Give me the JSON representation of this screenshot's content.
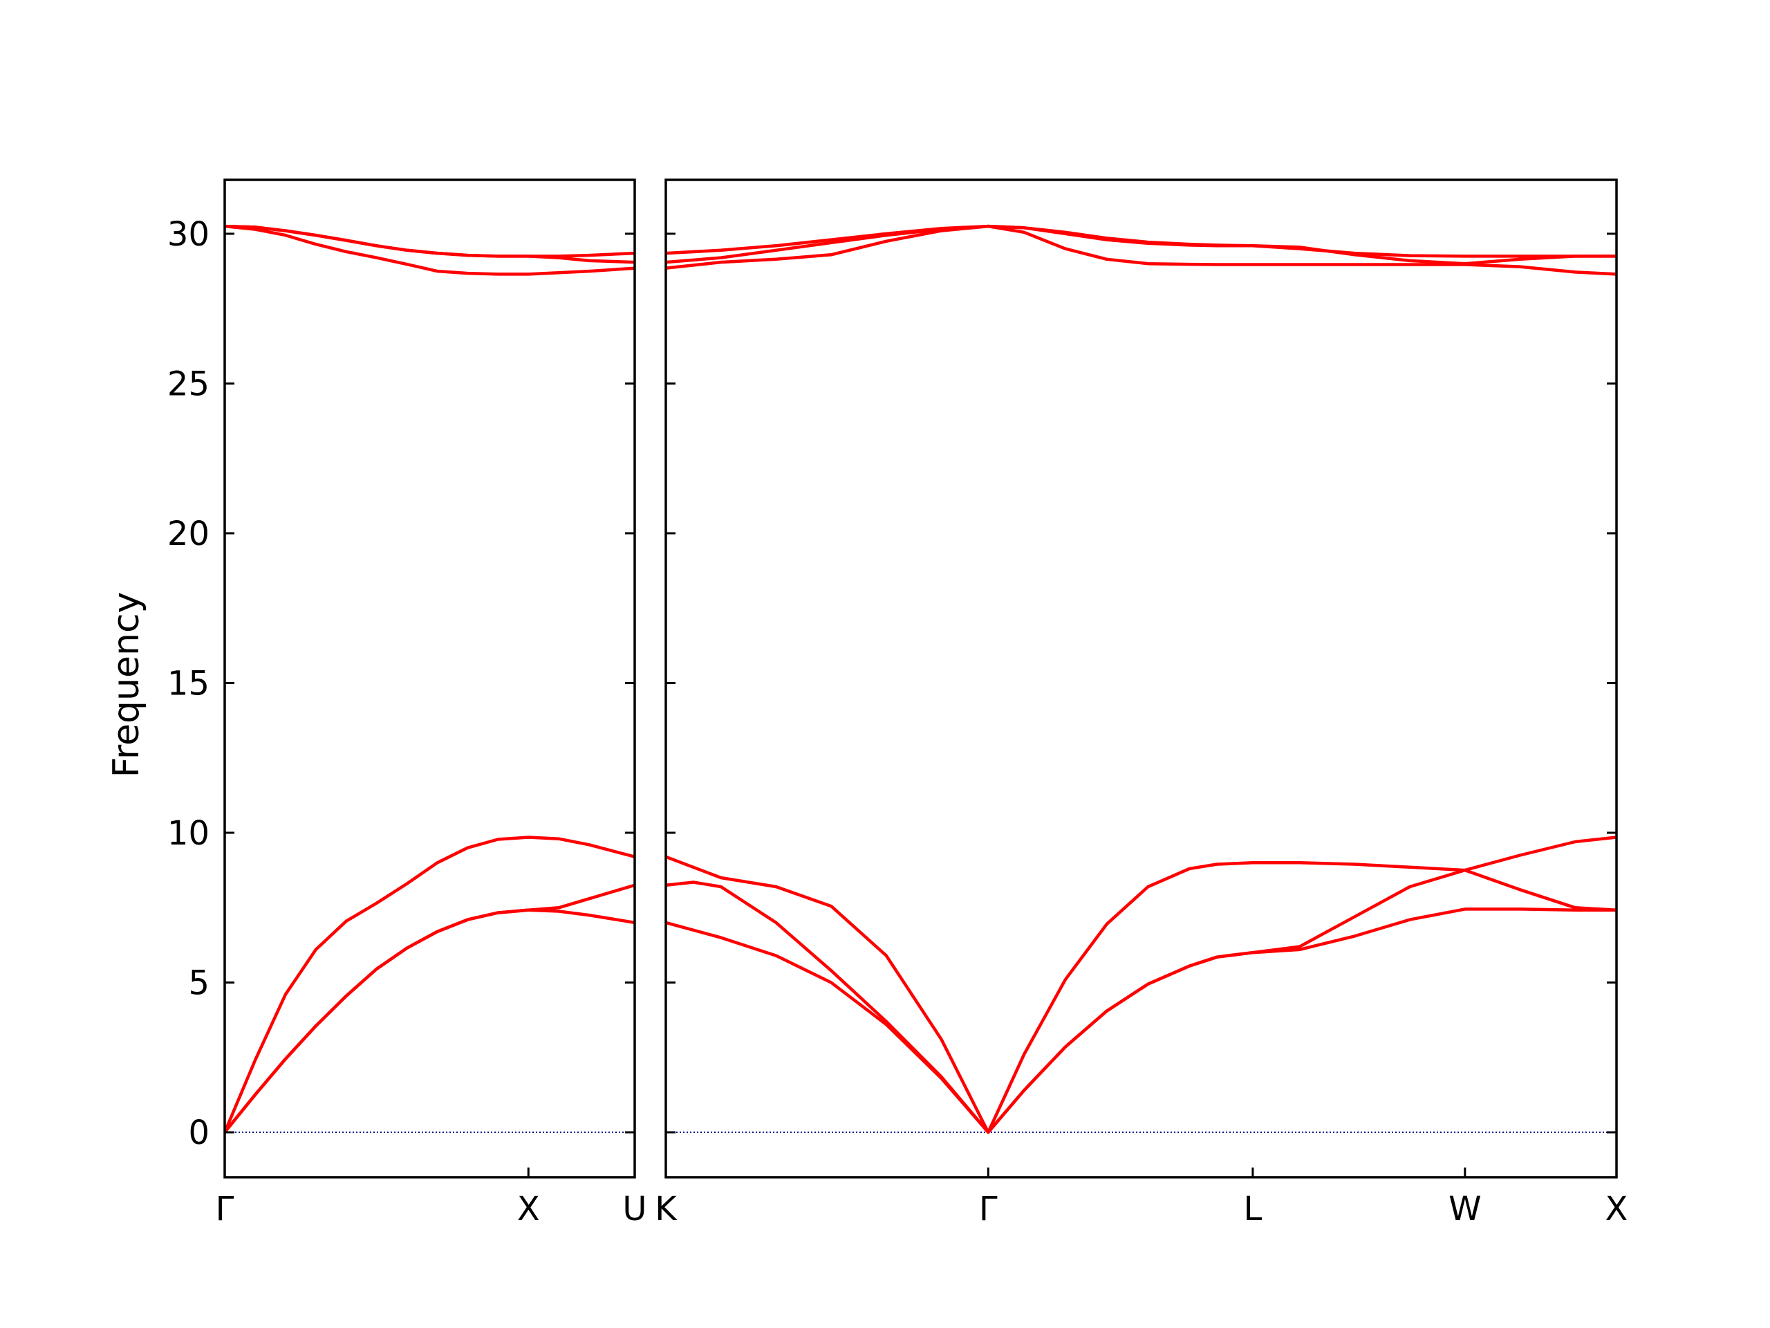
{
  "chart_data": {
    "type": "line",
    "ylabel": "Frequency",
    "ylim": [
      -1.5,
      31.8
    ],
    "y_ticks": [
      "0",
      "5",
      "10",
      "15",
      "20",
      "25",
      "30"
    ],
    "y_tick_values": [
      0,
      5,
      10,
      15,
      20,
      25,
      30
    ],
    "grid": false,
    "band_color": "#ff0000",
    "zero_line_color": "#00008b",
    "panels": [
      {
        "name": "left-panel",
        "xlim": [
          0,
          1.35
        ],
        "x_ticks": [
          {
            "label": "Γ",
            "value": 0
          },
          {
            "label": "X",
            "value": 1.0
          },
          {
            "label": "U",
            "value": 1.35
          }
        ],
        "series": [
          {
            "x": [
              0,
              0.1,
              0.2,
              0.3,
              0.4,
              0.5,
              0.6,
              0.7,
              0.8,
              0.9,
              1.0,
              1.1,
              1.2,
              1.35
            ],
            "values": [
              0,
              1.25,
              2.45,
              3.55,
              4.55,
              5.45,
              6.15,
              6.7,
              7.1,
              7.33,
              7.42,
              7.38,
              7.25,
              7.0
            ]
          },
          {
            "x": [
              0,
              0.1,
              0.2,
              0.3,
              0.4,
              0.5,
              0.6,
              0.7,
              0.8,
              0.9,
              1.0,
              1.1,
              1.2,
              1.35
            ],
            "values": [
              0,
              1.25,
              2.45,
              3.55,
              4.55,
              5.45,
              6.15,
              6.7,
              7.1,
              7.33,
              7.42,
              7.5,
              7.8,
              8.25
            ]
          },
          {
            "x": [
              0,
              0.1,
              0.2,
              0.3,
              0.4,
              0.5,
              0.6,
              0.7,
              0.8,
              0.9,
              1.0,
              1.1,
              1.2,
              1.35
            ],
            "values": [
              0,
              2.4,
              4.6,
              6.1,
              7.05,
              7.65,
              8.3,
              9.0,
              9.5,
              9.78,
              9.85,
              9.8,
              9.6,
              9.2
            ]
          },
          {
            "x": [
              0,
              0.1,
              0.2,
              0.3,
              0.4,
              0.5,
              0.6,
              0.7,
              0.8,
              0.9,
              1.0,
              1.1,
              1.2,
              1.35
            ],
            "values": [
              30.25,
              30.15,
              29.95,
              29.65,
              29.4,
              29.2,
              28.98,
              28.75,
              28.68,
              28.65,
              28.65,
              28.7,
              28.75,
              28.85
            ]
          },
          {
            "x": [
              0,
              0.1,
              0.2,
              0.3,
              0.4,
              0.5,
              0.6,
              0.7,
              0.8,
              0.9,
              1.0,
              1.1,
              1.2,
              1.35
            ],
            "values": [
              30.25,
              30.22,
              30.1,
              29.95,
              29.78,
              29.6,
              29.45,
              29.35,
              29.28,
              29.25,
              29.25,
              29.25,
              29.28,
              29.35
            ]
          },
          {
            "x": [
              0,
              0.1,
              0.2,
              0.3,
              0.4,
              0.5,
              0.6,
              0.7,
              0.8,
              0.9,
              1.0,
              1.1,
              1.2,
              1.35
            ],
            "values": [
              30.25,
              30.22,
              30.1,
              29.95,
              29.78,
              29.6,
              29.45,
              29.35,
              29.28,
              29.25,
              29.25,
              29.2,
              29.1,
              29.05
            ]
          }
        ]
      },
      {
        "name": "right-panel",
        "xlim": [
          0,
          3.45
        ],
        "x_ticks": [
          {
            "label": "K",
            "value": 0
          },
          {
            "label": "Γ",
            "value": 1.17
          },
          {
            "label": "L",
            "value": 2.13
          },
          {
            "label": "W",
            "value": 2.9
          },
          {
            "label": "X",
            "value": 3.45
          }
        ],
        "series": [
          {
            "x": [
              0,
              0.2,
              0.4,
              0.6,
              0.8,
              1.0,
              1.17,
              1.3,
              1.45,
              1.6,
              1.75,
              1.9,
              2.0,
              2.13,
              2.3,
              2.5,
              2.7,
              2.9,
              3.1,
              3.3,
              3.45
            ],
            "values": [
              7.0,
              6.5,
              5.9,
              5.0,
              3.6,
              1.8,
              0,
              1.4,
              2.85,
              4.05,
              4.95,
              5.55,
              5.85,
              6.0,
              6.1,
              6.55,
              7.1,
              7.45,
              7.45,
              7.42,
              7.42
            ]
          },
          {
            "x": [
              0,
              0.1,
              0.2,
              0.4,
              0.6,
              0.8,
              1.0,
              1.17,
              1.3,
              1.45,
              1.6,
              1.75,
              1.9,
              2.0,
              2.13,
              2.3,
              2.5,
              2.7,
              2.9,
              3.1,
              3.3,
              3.45
            ],
            "values": [
              8.25,
              8.35,
              8.2,
              7.0,
              5.4,
              3.7,
              1.85,
              0,
              1.4,
              2.85,
              4.05,
              4.95,
              5.55,
              5.85,
              6.0,
              6.2,
              7.2,
              8.2,
              8.75,
              8.1,
              7.5,
              7.42
            ]
          },
          {
            "x": [
              0,
              0.2,
              0.4,
              0.6,
              0.8,
              1.0,
              1.17,
              1.3,
              1.45,
              1.6,
              1.75,
              1.9,
              2.0,
              2.13,
              2.3,
              2.5,
              2.7,
              2.9,
              3.1,
              3.3,
              3.45
            ],
            "values": [
              9.2,
              8.5,
              8.2,
              7.55,
              5.9,
              3.1,
              0,
              2.6,
              5.1,
              6.95,
              8.2,
              8.8,
              8.95,
              9.0,
              9.0,
              8.95,
              8.85,
              8.75,
              9.25,
              9.7,
              9.85
            ]
          },
          {
            "x": [
              0,
              0.2,
              0.4,
              0.6,
              0.8,
              1.0,
              1.17,
              1.3,
              1.45,
              1.6,
              1.75,
              1.9,
              2.0,
              2.13,
              2.3,
              2.5,
              2.7,
              2.9,
              3.1,
              3.3,
              3.45
            ],
            "values": [
              28.85,
              29.05,
              29.15,
              29.3,
              29.75,
              30.1,
              30.25,
              30.05,
              29.5,
              29.15,
              29.0,
              28.98,
              28.97,
              28.97,
              28.97,
              28.97,
              28.97,
              28.97,
              28.9,
              28.72,
              28.65
            ]
          },
          {
            "x": [
              0,
              0.2,
              0.4,
              0.6,
              0.8,
              1.0,
              1.17,
              1.3,
              1.45,
              1.6,
              1.75,
              1.9,
              2.0,
              2.13,
              2.3,
              2.5,
              2.7,
              2.9,
              3.1,
              3.3,
              3.45
            ],
            "values": [
              29.05,
              29.2,
              29.45,
              29.7,
              29.95,
              30.15,
              30.25,
              30.2,
              30.0,
              29.8,
              29.68,
              29.62,
              29.6,
              29.6,
              29.55,
              29.3,
              29.1,
              29.0,
              29.15,
              29.25,
              29.25
            ]
          },
          {
            "x": [
              0,
              0.2,
              0.4,
              0.6,
              0.8,
              1.0,
              1.17,
              1.3,
              1.45,
              1.6,
              1.75,
              1.9,
              2.0,
              2.13,
              2.3,
              2.5,
              2.7,
              2.9,
              3.1,
              3.3,
              3.45
            ],
            "values": [
              29.35,
              29.45,
              29.6,
              29.8,
              30.0,
              30.18,
              30.25,
              30.2,
              30.05,
              29.85,
              29.72,
              29.65,
              29.62,
              29.6,
              29.5,
              29.35,
              29.27,
              29.25,
              29.25,
              29.25,
              29.25
            ]
          }
        ]
      }
    ]
  }
}
